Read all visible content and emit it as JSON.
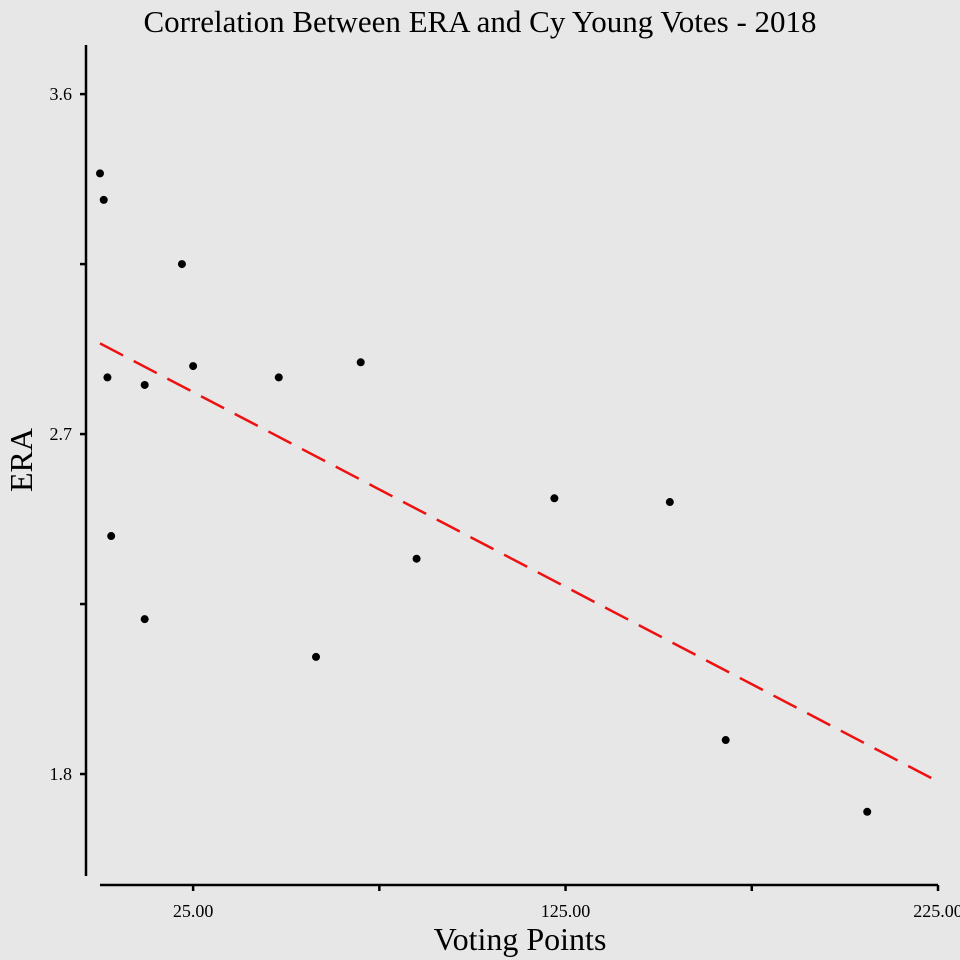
{
  "chart_data": {
    "type": "scatter",
    "title": "Correlation Between ERA and Cy Young Votes - 2018",
    "xlabel": "Voting Points",
    "ylabel": "ERA",
    "xlim": [
      0,
      225
    ],
    "ylim": [
      1.53,
      3.73
    ],
    "x_ticks": [
      {
        "value": 25,
        "label": "25.00"
      },
      {
        "value": 75,
        "label": ""
      },
      {
        "value": 125,
        "label": "125.00"
      },
      {
        "value": 175,
        "label": ""
      },
      {
        "value": 225,
        "label": "225.00"
      }
    ],
    "y_ticks": [
      {
        "value": 1.8,
        "label": "1.8"
      },
      {
        "value": 2.25,
        "label": ""
      },
      {
        "value": 2.7,
        "label": "2.7"
      },
      {
        "value": 3.15,
        "label": ""
      },
      {
        "value": 3.6,
        "label": "3.6"
      }
    ],
    "points": [
      {
        "x": 0,
        "y": 3.39
      },
      {
        "x": 1,
        "y": 3.32
      },
      {
        "x": 2,
        "y": 2.85
      },
      {
        "x": 3,
        "y": 2.43
      },
      {
        "x": 12,
        "y": 2.83
      },
      {
        "x": 12,
        "y": 2.21
      },
      {
        "x": 22,
        "y": 3.15
      },
      {
        "x": 25,
        "y": 2.88
      },
      {
        "x": 48,
        "y": 2.85
      },
      {
        "x": 58,
        "y": 2.11
      },
      {
        "x": 70,
        "y": 2.89
      },
      {
        "x": 85,
        "y": 2.37
      },
      {
        "x": 122,
        "y": 2.53
      },
      {
        "x": 153,
        "y": 2.52
      },
      {
        "x": 168,
        "y": 1.89
      },
      {
        "x": 206,
        "y": 1.7
      }
    ],
    "trendline": {
      "x": [
        0,
        225
      ],
      "y": [
        2.94,
        1.78
      ]
    },
    "trendline_color": "#ee1111",
    "point_color": "#000000",
    "background": "#e7e7e7",
    "grid": false,
    "legend": "none"
  }
}
